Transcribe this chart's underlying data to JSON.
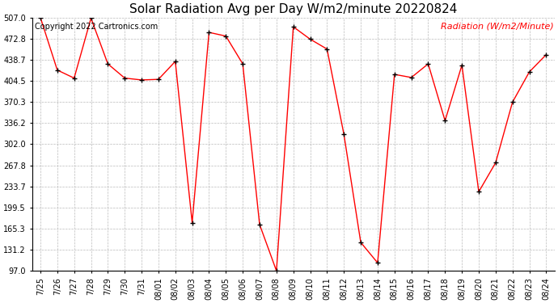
{
  "title": "Solar Radiation Avg per Day W/m2/minute 20220824",
  "copyright": "Copyright 2022 Cartronics.com",
  "legend_label": "Radiation (W/m2/Minute)",
  "dates": [
    "7/25",
    "7/26",
    "7/27",
    "7/28",
    "7/29",
    "7/30",
    "7/31",
    "08/01",
    "08/02",
    "08/03",
    "08/04",
    "08/05",
    "08/06",
    "08/07",
    "08/08",
    "08/09",
    "08/10",
    "08/11",
    "08/12",
    "08/13",
    "08/14",
    "08/15",
    "08/16",
    "08/17",
    "08/18",
    "08/19",
    "08/20",
    "08/21",
    "08/22",
    "08/23",
    "08/24"
  ],
  "values": [
    507.0,
    422.0,
    409.0,
    506.0,
    432.0,
    409.0,
    406.0,
    407.0,
    436.0,
    175.0,
    483.0,
    477.0,
    432.0,
    172.0,
    97.0,
    492.0,
    472.0,
    456.0,
    318.0,
    143.0,
    110.0,
    415.0,
    410.0,
    432.0,
    340.0,
    430.0,
    225.0,
    272.0,
    370.0,
    419.0,
    447.0
  ],
  "ylim": [
    97.0,
    507.0
  ],
  "yticks": [
    97.0,
    131.2,
    165.3,
    199.5,
    233.7,
    267.8,
    302.0,
    336.2,
    370.3,
    404.5,
    438.7,
    472.8,
    507.0
  ],
  "line_color": "red",
  "marker_color": "black",
  "bg_color": "white",
  "grid_color": "#bbbbbb",
  "title_fontsize": 11,
  "copyright_fontsize": 7,
  "legend_fontsize": 8,
  "tick_fontsize": 7,
  "copyright_color": "black",
  "legend_color": "red"
}
